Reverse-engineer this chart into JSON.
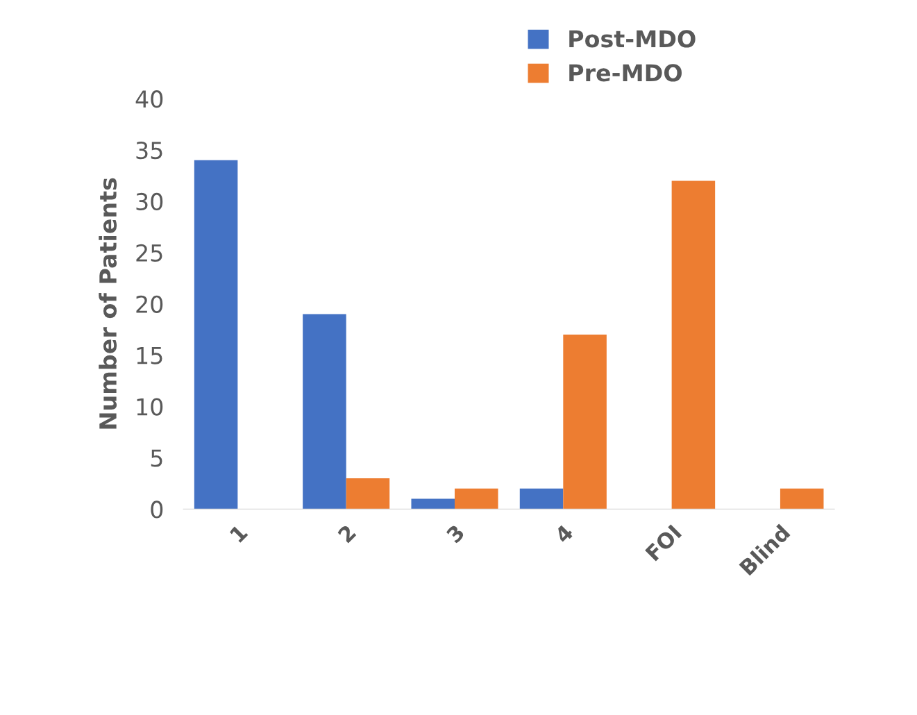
{
  "chart_data": {
    "type": "bar",
    "ylabel": "Number of Patients",
    "categories": [
      "1",
      "2",
      "3",
      "4",
      "FOI",
      "Blind"
    ],
    "series": [
      {
        "name": "Post-MDO",
        "color": "#4472c4",
        "values": [
          34,
          19,
          1,
          2,
          0,
          0
        ]
      },
      {
        "name": "Pre-MDO",
        "color": "#ed7d31",
        "values": [
          0,
          3,
          2,
          17,
          32,
          2
        ]
      }
    ],
    "ylim": [
      0,
      40
    ],
    "yticks": [
      0,
      5,
      10,
      15,
      20,
      25,
      30,
      35,
      40
    ],
    "grid": false,
    "legend": "top right"
  }
}
